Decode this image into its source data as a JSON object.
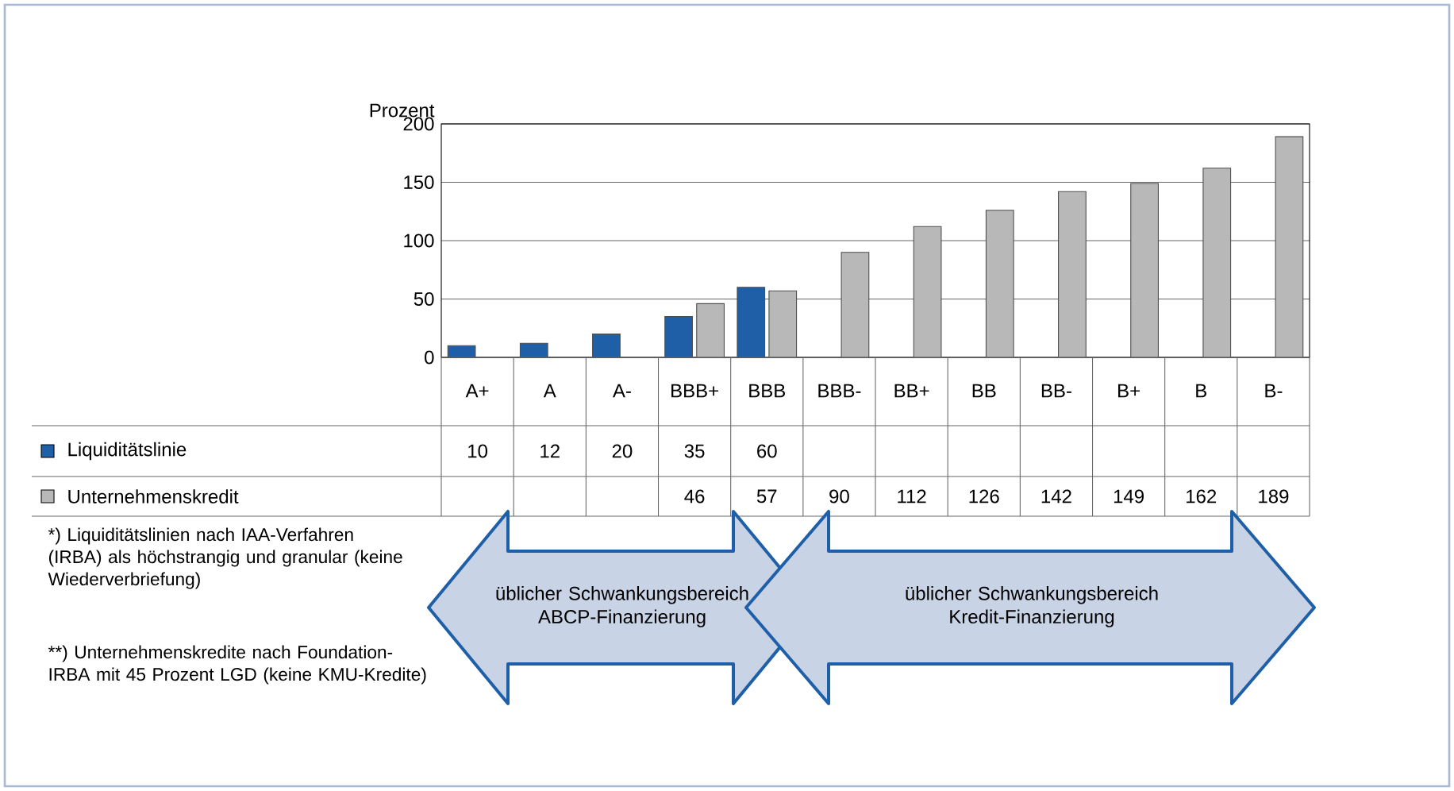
{
  "chart_data": {
    "type": "bar",
    "ylabel": "Prozent",
    "categories": [
      "A+",
      "A",
      "A-",
      "BBB+",
      "BBB",
      "BBB-",
      "BB+",
      "BB",
      "BB-",
      "B+",
      "B",
      "B-"
    ],
    "series": [
      {
        "name": "Liquiditätslinie",
        "color": "#1f5fa8",
        "values": [
          10,
          12,
          20,
          35,
          60,
          null,
          null,
          null,
          null,
          null,
          null,
          null
        ]
      },
      {
        "name": "Unternehmenskredit",
        "color": "#b8b8b8",
        "values": [
          null,
          null,
          null,
          46,
          57,
          90,
          112,
          126,
          142,
          149,
          162,
          189
        ]
      }
    ],
    "ylim": [
      0,
      200
    ],
    "yticks": [
      0,
      50,
      100,
      150,
      200
    ],
    "grid": "y",
    "data_labels": true,
    "legend": "bottom",
    "annotations": [
      "üblicher Schwankungsbereich ABCP-Finanzierung",
      "üblicher Schwankungsbereich Kredit-Finanzierung",
      "*) Liquiditätslinien nach IAA-Verfahren (IRBA) als höchstrangig und granular (keine Wiederverbriefung)",
      "**) Unternehmenskredite nach Foundation-IRBA mit 45 Prozent LGD (keine KMU-Kredite)"
    ]
  }
}
